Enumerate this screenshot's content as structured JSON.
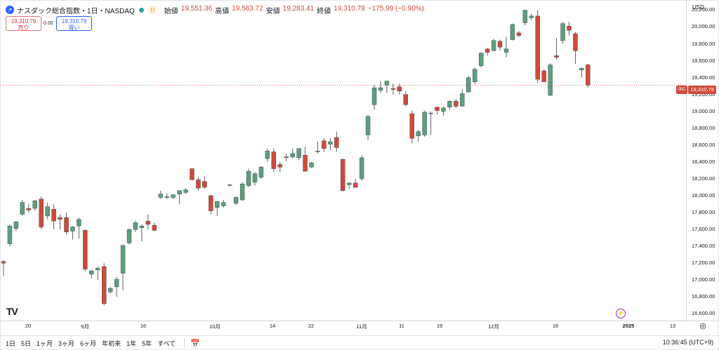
{
  "header": {
    "symbol_title": "ナスダック総合指数・1日・NASDAQ",
    "d_badge": "D",
    "open_label": "始値",
    "open_value": "19,551.36",
    "high_label": "高値",
    "high_value": "19,563.72",
    "low_label": "安値",
    "low_value": "19,283.41",
    "close_label": "終値",
    "close_value": "19,310.79",
    "change": "−175.99 (−0.90%)"
  },
  "trade": {
    "sell_price": "19,310.79",
    "sell_label": "売り",
    "spread": "0.00",
    "buy_price": "19,310.79",
    "buy_label": "買い"
  },
  "axis": {
    "currency": "USD",
    "price_tag": "19,310.79",
    "ago_tag": "00C",
    "y_ticks": [
      "20,200.00",
      "20,000.00",
      "19,800.00",
      "19,600.00",
      "19,400.00",
      "19,200.00",
      "19,000.00",
      "18,800.00",
      "18,600.00",
      "18,400.00",
      "18,200.00",
      "18,000.00",
      "17,800.00",
      "17,600.00",
      "17,400.00",
      "17,200.00",
      "17,000.00",
      "16,800.00",
      "16,600.00"
    ],
    "x_ticks": [
      {
        "label": "20",
        "bold": false
      },
      {
        "label": "9月",
        "bold": false
      },
      {
        "label": "16",
        "bold": false
      },
      {
        "label": "10月",
        "bold": false
      },
      {
        "label": "14",
        "bold": false
      },
      {
        "label": "22",
        "bold": false
      },
      {
        "label": "11月",
        "bold": false
      },
      {
        "label": "11",
        "bold": false
      },
      {
        "label": "19",
        "bold": false
      },
      {
        "label": "12月",
        "bold": false
      },
      {
        "label": "16",
        "bold": false
      },
      {
        "label": "2025",
        "bold": true
      },
      {
        "label": "13",
        "bold": false
      }
    ]
  },
  "bottom_bar": {
    "timeframes": [
      "1日",
      "5日",
      "1ヶ月",
      "3ヶ月",
      "6ヶ月",
      "年初来",
      "1年",
      "5年",
      "すべて"
    ],
    "clock": "10:36:45 (UTC+9)"
  },
  "colors": {
    "up": "#5e9e7e",
    "down": "#d04a3c",
    "price_line": "#d04a3c"
  },
  "icons": {
    "logo": "tradingview-logo-icon",
    "calendar": "calendar-range-icon",
    "settings": "settings-icon",
    "lightning": "lightning-icon"
  },
  "chart_data": {
    "type": "candlestick",
    "ylim": [
      16520,
      20320
    ],
    "last_price": 19310.79,
    "candles": [
      {
        "o": 17220,
        "h": 17240,
        "l": 17050,
        "c": 17200
      },
      {
        "o": 17430,
        "h": 17660,
        "l": 17400,
        "c": 17640
      },
      {
        "o": 17610,
        "h": 17700,
        "l": 17580,
        "c": 17690
      },
      {
        "o": 17780,
        "h": 17950,
        "l": 17760,
        "c": 17920
      },
      {
        "o": 17850,
        "h": 17900,
        "l": 17800,
        "c": 17830
      },
      {
        "o": 17850,
        "h": 17950,
        "l": 17820,
        "c": 17940
      },
      {
        "o": 17960,
        "h": 17990,
        "l": 17600,
        "c": 17630
      },
      {
        "o": 17760,
        "h": 17920,
        "l": 17720,
        "c": 17870
      },
      {
        "o": 17840,
        "h": 17900,
        "l": 17600,
        "c": 17700
      },
      {
        "o": 17740,
        "h": 17780,
        "l": 17600,
        "c": 17720
      },
      {
        "o": 17740,
        "h": 17800,
        "l": 17540,
        "c": 17570
      },
      {
        "o": 17580,
        "h": 17640,
        "l": 17480,
        "c": 17630
      },
      {
        "o": 17640,
        "h": 17740,
        "l": 17490,
        "c": 17720
      },
      {
        "o": 17590,
        "h": 17600,
        "l": 17100,
        "c": 17130
      },
      {
        "o": 17070,
        "h": 17120,
        "l": 17020,
        "c": 17110
      },
      {
        "o": 17120,
        "h": 17160,
        "l": 17000,
        "c": 17140
      },
      {
        "o": 17160,
        "h": 17200,
        "l": 16700,
        "c": 16720
      },
      {
        "o": 16860,
        "h": 16920,
        "l": 16840,
        "c": 16900
      },
      {
        "o": 16920,
        "h": 17040,
        "l": 16800,
        "c": 17010
      },
      {
        "o": 17080,
        "h": 17420,
        "l": 16880,
        "c": 17410
      },
      {
        "o": 17440,
        "h": 17610,
        "l": 17420,
        "c": 17600
      },
      {
        "o": 17600,
        "h": 17700,
        "l": 17570,
        "c": 17680
      },
      {
        "o": 17620,
        "h": 17660,
        "l": 17460,
        "c": 17640
      },
      {
        "o": 17700,
        "h": 17780,
        "l": 17600,
        "c": 17660
      },
      {
        "o": 17650,
        "h": 17680,
        "l": 17580,
        "c": 17590
      },
      {
        "o": 17980,
        "h": 18060,
        "l": 17960,
        "c": 18020
      },
      {
        "o": 17980,
        "h": 18030,
        "l": 17960,
        "c": 17990
      },
      {
        "o": 17980,
        "h": 18020,
        "l": 17960,
        "c": 18010
      },
      {
        "o": 18020,
        "h": 18060,
        "l": 17900,
        "c": 18060
      },
      {
        "o": 18040,
        "h": 18090,
        "l": 18020,
        "c": 18070
      },
      {
        "o": 18320,
        "h": 18330,
        "l": 18180,
        "c": 18190
      },
      {
        "o": 18190,
        "h": 18220,
        "l": 18060,
        "c": 18090
      },
      {
        "o": 18170,
        "h": 18230,
        "l": 18080,
        "c": 18100
      },
      {
        "o": 18000,
        "h": 18010,
        "l": 17780,
        "c": 17820
      },
      {
        "o": 17860,
        "h": 17940,
        "l": 17760,
        "c": 17930
      },
      {
        "o": 17880,
        "h": 17950,
        "l": 17860,
        "c": 17920
      },
      {
        "o": 18130,
        "h": 18140,
        "l": 18110,
        "c": 18130
      },
      {
        "o": 17910,
        "h": 17990,
        "l": 17890,
        "c": 17980
      },
      {
        "o": 17950,
        "h": 18160,
        "l": 17940,
        "c": 18140
      },
      {
        "o": 18120,
        "h": 18320,
        "l": 18100,
        "c": 18290
      },
      {
        "o": 18160,
        "h": 18280,
        "l": 18120,
        "c": 18260
      },
      {
        "o": 18220,
        "h": 18350,
        "l": 18200,
        "c": 18340
      },
      {
        "o": 18440,
        "h": 18560,
        "l": 18400,
        "c": 18530
      },
      {
        "o": 18520,
        "h": 18560,
        "l": 18280,
        "c": 18320
      },
      {
        "o": 18370,
        "h": 18400,
        "l": 18280,
        "c": 18340
      },
      {
        "o": 18460,
        "h": 18500,
        "l": 18410,
        "c": 18450
      },
      {
        "o": 18460,
        "h": 18560,
        "l": 18440,
        "c": 18500
      },
      {
        "o": 18450,
        "h": 18560,
        "l": 18420,
        "c": 18560
      },
      {
        "o": 18480,
        "h": 18580,
        "l": 18300,
        "c": 18290
      },
      {
        "o": 18340,
        "h": 18400,
        "l": 18330,
        "c": 18390
      },
      {
        "o": 18530,
        "h": 18640,
        "l": 18500,
        "c": 18530
      },
      {
        "o": 18650,
        "h": 18680,
        "l": 18520,
        "c": 18560
      },
      {
        "o": 18610,
        "h": 18680,
        "l": 18540,
        "c": 18640
      },
      {
        "o": 18690,
        "h": 18760,
        "l": 18520,
        "c": 18570
      },
      {
        "o": 18430,
        "h": 18440,
        "l": 18050,
        "c": 18060
      },
      {
        "o": 18130,
        "h": 18160,
        "l": 18080,
        "c": 18150
      },
      {
        "o": 18150,
        "h": 18200,
        "l": 18090,
        "c": 18100
      },
      {
        "o": 18200,
        "h": 18480,
        "l": 18180,
        "c": 18450
      },
      {
        "o": 18720,
        "h": 18960,
        "l": 18660,
        "c": 18940
      },
      {
        "o": 19080,
        "h": 19310,
        "l": 19020,
        "c": 19280
      },
      {
        "o": 19250,
        "h": 19360,
        "l": 19220,
        "c": 19280
      },
      {
        "o": 19310,
        "h": 19360,
        "l": 19220,
        "c": 19360
      },
      {
        "o": 19270,
        "h": 19330,
        "l": 19200,
        "c": 19260
      },
      {
        "o": 19290,
        "h": 19330,
        "l": 19200,
        "c": 19240
      },
      {
        "o": 19200,
        "h": 19240,
        "l": 19060,
        "c": 19080
      },
      {
        "o": 18970,
        "h": 19010,
        "l": 18620,
        "c": 18680
      },
      {
        "o": 18710,
        "h": 18780,
        "l": 18640,
        "c": 18760
      },
      {
        "o": 18720,
        "h": 19010,
        "l": 18700,
        "c": 18990
      },
      {
        "o": 18980,
        "h": 19000,
        "l": 18720,
        "c": 18980
      },
      {
        "o": 19050,
        "h": 19060,
        "l": 18960,
        "c": 19010
      },
      {
        "o": 19000,
        "h": 19060,
        "l": 18950,
        "c": 19040
      },
      {
        "o": 19050,
        "h": 19130,
        "l": 19020,
        "c": 19120
      },
      {
        "o": 19120,
        "h": 19150,
        "l": 19040,
        "c": 19060
      },
      {
        "o": 19060,
        "h": 19260,
        "l": 19060,
        "c": 19210
      },
      {
        "o": 19230,
        "h": 19420,
        "l": 19230,
        "c": 19400
      },
      {
        "o": 19350,
        "h": 19520,
        "l": 19320,
        "c": 19500
      },
      {
        "o": 19540,
        "h": 19700,
        "l": 19520,
        "c": 19690
      },
      {
        "o": 19740,
        "h": 19750,
        "l": 19660,
        "c": 19700
      },
      {
        "o": 19720,
        "h": 19860,
        "l": 19710,
        "c": 19840
      },
      {
        "o": 19830,
        "h": 19850,
        "l": 19720,
        "c": 19760
      },
      {
        "o": 19700,
        "h": 19880,
        "l": 19640,
        "c": 19740
      },
      {
        "o": 19850,
        "h": 20040,
        "l": 19840,
        "c": 20030
      },
      {
        "o": 19930,
        "h": 19950,
        "l": 19880,
        "c": 19900
      },
      {
        "o": 20050,
        "h": 20200,
        "l": 20020,
        "c": 20200
      },
      {
        "o": 20110,
        "h": 20160,
        "l": 20080,
        "c": 20130
      },
      {
        "o": 20130,
        "h": 20200,
        "l": 19340,
        "c": 19380
      },
      {
        "o": 19480,
        "h": 19500,
        "l": 19350,
        "c": 19350
      },
      {
        "o": 19190,
        "h": 19570,
        "l": 19180,
        "c": 19550
      },
      {
        "o": 19660,
        "h": 19870,
        "l": 19610,
        "c": 19640
      },
      {
        "o": 19840,
        "h": 20060,
        "l": 19800,
        "c": 20040
      },
      {
        "o": 20010,
        "h": 20060,
        "l": 19900,
        "c": 19960
      },
      {
        "o": 19920,
        "h": 19940,
        "l": 19560,
        "c": 19720
      },
      {
        "o": 19490,
        "h": 19520,
        "l": 19400,
        "c": 19510
      },
      {
        "o": 19551.36,
        "h": 19563.72,
        "l": 19283.41,
        "c": 19310.79
      }
    ]
  }
}
